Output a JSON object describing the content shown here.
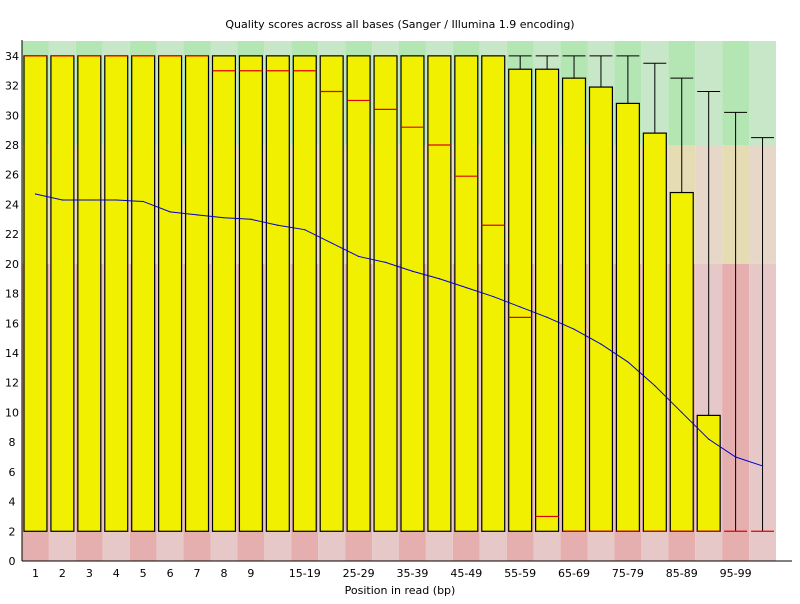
{
  "chart_data": {
    "type": "box",
    "title": "Quality scores across all bases (Sanger / Illumina 1.9 encoding)",
    "xlabel": "Position in read (bp)",
    "ylabel": "",
    "ylim": [
      0,
      35
    ],
    "yticks": [
      0,
      2,
      4,
      6,
      8,
      10,
      12,
      14,
      16,
      18,
      20,
      22,
      24,
      26,
      28,
      30,
      32,
      34
    ],
    "grid": false,
    "background_bands": [
      {
        "from": 28,
        "to": 35,
        "color": "#b4e6b4",
        "alt_color": "#c8e6c8"
      },
      {
        "from": 20,
        "to": 28,
        "color": "#e6dcb4",
        "alt_color": "#e6d7c8"
      },
      {
        "from": 0,
        "to": 20,
        "color": "#e6afaf",
        "alt_color": "#e6c8c8"
      }
    ],
    "colors": {
      "box": "#f0f000",
      "median": "#e00000",
      "mean": "#0000c8",
      "whisker": "#000000"
    },
    "categories": [
      "1",
      "2",
      "3",
      "4",
      "5",
      "6",
      "7",
      "8",
      "9",
      "",
      "15-19",
      "",
      "25-29",
      "",
      "35-39",
      "",
      "45-49",
      "",
      "55-59",
      "",
      "65-69",
      "",
      "75-79",
      "",
      "85-89",
      "",
      "95-99",
      ""
    ],
    "series": [
      {
        "key": "q1",
        "values": [
          2,
          2,
          2,
          2,
          2,
          2,
          2,
          2,
          2,
          2,
          2,
          2,
          2,
          2,
          2,
          2,
          2,
          2,
          2,
          2,
          2,
          2,
          2,
          2,
          2,
          2,
          2,
          2
        ]
      },
      {
        "key": "median",
        "values": [
          34,
          34,
          34,
          34,
          34,
          34,
          34,
          33,
          33,
          33,
          33,
          31.6,
          31.0,
          30.4,
          29.2,
          28.0,
          25.9,
          22.6,
          16.4,
          3.0,
          2,
          2,
          2,
          2,
          2,
          2,
          2,
          2
        ]
      },
      {
        "key": "q3",
        "values": [
          34,
          34,
          34,
          34,
          34,
          34,
          34,
          34,
          34,
          34,
          34,
          34,
          34,
          34,
          34,
          34,
          34,
          34,
          33.1,
          33.1,
          32.5,
          31.9,
          30.8,
          28.8,
          24.8,
          9.8,
          2,
          2
        ]
      },
      {
        "key": "whisker_low",
        "values": [
          2,
          2,
          2,
          2,
          2,
          2,
          2,
          2,
          2,
          2,
          2,
          2,
          2,
          2,
          2,
          2,
          2,
          2,
          2,
          2,
          2,
          2,
          2,
          2,
          2,
          2,
          2,
          2
        ]
      },
      {
        "key": "whisker_high",
        "values": [
          34,
          34,
          34,
          34,
          34,
          34,
          34,
          34,
          34,
          34,
          34,
          34,
          34,
          34,
          34,
          34,
          34,
          34,
          34,
          34,
          34,
          34,
          34,
          33.5,
          32.5,
          31.6,
          30.2,
          28.5
        ]
      },
      {
        "key": "mean",
        "values": [
          24.7,
          24.3,
          24.3,
          24.3,
          24.2,
          23.5,
          23.3,
          23.1,
          23.0,
          22.6,
          22.3,
          21.4,
          20.5,
          20.1,
          19.5,
          19.0,
          18.4,
          17.8,
          17.1,
          16.4,
          15.6,
          14.6,
          13.4,
          11.8,
          10.0,
          8.2,
          7.0,
          6.4
        ]
      }
    ]
  }
}
